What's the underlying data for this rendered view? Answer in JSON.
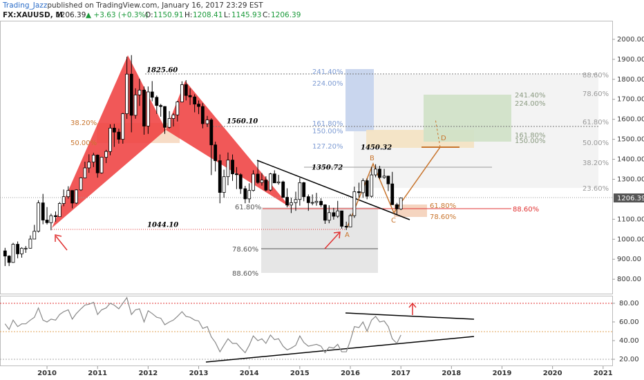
{
  "chart_data": {
    "type": "candlestick",
    "publisher": "Trading_Jazz",
    "published": " published on TradingView.com, January 16, 2017 23:29 EST",
    "symbol": "FX:XAUUSD, M",
    "change": "▲ +3.63 (+0.3%)",
    "ohlc_labels": [
      "O:",
      "H:",
      "L:",
      "C:"
    ],
    "up_color": "#ffffff",
    "down_color": "#000000",
    "grid": false,
    "xlim": [
      2009.07,
      2021.18
    ],
    "xticks": [
      2010,
      2011,
      2012,
      2013,
      2014,
      2015,
      2016,
      2017,
      2018,
      2019,
      2020,
      2021
    ],
    "ylim": [
      728,
      2093
    ],
    "yticks": [
      {
        "value": 800,
        "label": "800.00"
      },
      {
        "value": 900,
        "label": "900.00"
      },
      {
        "value": 1000,
        "label": "1000.00"
      },
      {
        "value": 1100,
        "label": "1100.00"
      },
      {
        "value": 1300,
        "label": "1300.00"
      },
      {
        "value": 1400,
        "label": "1400.00"
      },
      {
        "value": 1500,
        "label": "1500.00"
      },
      {
        "value": 1600,
        "label": "1600.00"
      },
      {
        "value": 1700,
        "label": "1700.00"
      },
      {
        "value": 1800,
        "label": "1800.00"
      },
      {
        "value": 1900,
        "label": "1900.00"
      },
      {
        "value": 2000,
        "label": "2000.00"
      }
    ],
    "x": [
      2009.17,
      2009.25,
      2009.33,
      2009.42,
      2009.5,
      2009.58,
      2009.67,
      2009.75,
      2009.83,
      2009.92,
      2010,
      2010.08,
      2010.17,
      2010.25,
      2010.33,
      2010.42,
      2010.5,
      2010.58,
      2010.67,
      2010.75,
      2010.83,
      2010.92,
      2011,
      2011.08,
      2011.17,
      2011.25,
      2011.33,
      2011.42,
      2011.5,
      2011.58,
      2011.67,
      2011.75,
      2011.83,
      2011.92,
      2012,
      2012.08,
      2012.17,
      2012.25,
      2012.33,
      2012.42,
      2012.5,
      2012.58,
      2012.67,
      2012.75,
      2012.83,
      2012.92,
      2013,
      2013.08,
      2013.17,
      2013.25,
      2013.33,
      2013.42,
      2013.5,
      2013.58,
      2013.67,
      2013.75,
      2013.83,
      2013.92,
      2014,
      2014.08,
      2014.17,
      2014.25,
      2014.33,
      2014.42,
      2014.5,
      2014.58,
      2014.67,
      2014.75,
      2014.83,
      2014.92,
      2015,
      2015.08,
      2015.17,
      2015.25,
      2015.33,
      2015.42,
      2015.5,
      2015.58,
      2015.67,
      2015.75,
      2015.83,
      2015.92,
      2016,
      2016.08,
      2016.17,
      2016.25,
      2016.33,
      2016.42,
      2016.5,
      2016.58,
      2016.67,
      2016.75,
      2016.83,
      2016.92,
      2017
    ],
    "candles": [
      [
        942,
        957,
        866,
        916
      ],
      [
        916,
        920,
        866,
        884
      ],
      [
        884,
        982,
        882,
        975
      ],
      [
        975,
        989,
        905,
        927
      ],
      [
        927,
        960,
        908,
        955
      ],
      [
        955,
        966,
        932,
        955
      ],
      [
        955,
        1019,
        953,
        1001
      ],
      [
        1001,
        1072,
        1001,
        1040
      ],
      [
        1040,
        1195,
        1034,
        1182
      ],
      [
        1182,
        1227,
        1075,
        1096
      ],
      [
        1096,
        1161,
        1074,
        1083
      ],
      [
        1083,
        1128,
        1045,
        1118
      ],
      [
        1118,
        1139,
        1088,
        1113
      ],
      [
        1113,
        1186,
        1112,
        1179
      ],
      [
        1179,
        1249,
        1165,
        1213
      ],
      [
        1213,
        1265,
        1203,
        1244
      ],
      [
        1244,
        1245,
        1155,
        1181
      ],
      [
        1181,
        1250,
        1176,
        1247
      ],
      [
        1247,
        1310,
        1242,
        1307
      ],
      [
        1307,
        1388,
        1305,
        1357
      ],
      [
        1357,
        1425,
        1332,
        1386
      ],
      [
        1386,
        1432,
        1361,
        1421
      ],
      [
        1421,
        1424,
        1308,
        1332
      ],
      [
        1332,
        1411,
        1328,
        1410
      ],
      [
        1410,
        1447,
        1381,
        1439
      ],
      [
        1439,
        1575,
        1420,
        1556
      ],
      [
        1556,
        1577,
        1462,
        1536
      ],
      [
        1536,
        1553,
        1478,
        1500
      ],
      [
        1500,
        1632,
        1478,
        1628
      ],
      [
        1628,
        1913,
        1602,
        1826
      ],
      [
        1826,
        1921,
        1535,
        1620
      ],
      [
        1620,
        1755,
        1603,
        1722
      ],
      [
        1722,
        1803,
        1667,
        1746
      ],
      [
        1746,
        1764,
        1523,
        1566
      ],
      [
        1566,
        1764,
        1527,
        1737
      ],
      [
        1737,
        1791,
        1690,
        1710
      ],
      [
        1710,
        1719,
        1627,
        1669
      ],
      [
        1669,
        1677,
        1613,
        1664
      ],
      [
        1664,
        1666,
        1527,
        1560
      ],
      [
        1560,
        1641,
        1554,
        1604
      ],
      [
        1604,
        1630,
        1564,
        1622
      ],
      [
        1622,
        1692,
        1589,
        1687
      ],
      [
        1687,
        1790,
        1685,
        1773
      ],
      [
        1773,
        1796,
        1694,
        1719
      ],
      [
        1719,
        1755,
        1672,
        1712
      ],
      [
        1712,
        1725,
        1635,
        1676
      ],
      [
        1676,
        1694,
        1626,
        1664
      ],
      [
        1664,
        1681,
        1555,
        1578
      ],
      [
        1578,
        1617,
        1562,
        1597
      ],
      [
        1597,
        1605,
        1321,
        1472
      ],
      [
        1472,
        1488,
        1339,
        1393
      ],
      [
        1393,
        1424,
        1180,
        1234
      ],
      [
        1234,
        1348,
        1208,
        1313
      ],
      [
        1313,
        1434,
        1270,
        1396
      ],
      [
        1396,
        1424,
        1292,
        1327
      ],
      [
        1327,
        1361,
        1251,
        1323
      ],
      [
        1323,
        1330,
        1227,
        1253
      ],
      [
        1253,
        1267,
        1180,
        1202
      ],
      [
        1202,
        1280,
        1182,
        1244
      ],
      [
        1244,
        1345,
        1239,
        1326
      ],
      [
        1326,
        1392,
        1277,
        1284
      ],
      [
        1284,
        1331,
        1268,
        1296
      ],
      [
        1296,
        1315,
        1240,
        1246
      ],
      [
        1246,
        1332,
        1240,
        1327
      ],
      [
        1327,
        1345,
        1281,
        1282
      ],
      [
        1282,
        1322,
        1273,
        1287
      ],
      [
        1287,
        1293,
        1206,
        1210
      ],
      [
        1210,
        1255,
        1160,
        1171
      ],
      [
        1171,
        1208,
        1131,
        1183
      ],
      [
        1183,
        1238,
        1142,
        1199
      ],
      [
        1199,
        1307,
        1168,
        1283
      ],
      [
        1283,
        1287,
        1190,
        1213
      ],
      [
        1213,
        1224,
        1142,
        1183
      ],
      [
        1183,
        1224,
        1170,
        1184
      ],
      [
        1184,
        1232,
        1168,
        1190
      ],
      [
        1190,
        1205,
        1162,
        1172
      ],
      [
        1172,
        1175,
        1077,
        1095
      ],
      [
        1095,
        1170,
        1080,
        1133
      ],
      [
        1133,
        1157,
        1098,
        1115
      ],
      [
        1115,
        1192,
        1107,
        1142
      ],
      [
        1142,
        1143,
        1053,
        1065
      ],
      [
        1065,
        1088,
        1046,
        1061
      ],
      [
        1061,
        1127,
        1061,
        1118
      ],
      [
        1118,
        1263,
        1107,
        1238
      ],
      [
        1238,
        1283,
        1208,
        1233
      ],
      [
        1233,
        1304,
        1207,
        1293
      ],
      [
        1293,
        1304,
        1200,
        1215
      ],
      [
        1215,
        1362,
        1208,
        1322
      ],
      [
        1322,
        1375,
        1310,
        1351
      ],
      [
        1351,
        1367,
        1301,
        1309
      ],
      [
        1309,
        1352,
        1302,
        1316
      ],
      [
        1316,
        1318,
        1241,
        1277
      ],
      [
        1277,
        1337,
        1171,
        1173
      ],
      [
        1173,
        1182,
        1122,
        1152
      ],
      [
        1150.91,
        1208.41,
        1145.93,
        1206.39
      ]
    ],
    "rsi": {
      "color": "#888888",
      "ylim": [
        12.6,
        88.1
      ],
      "yticks": [
        {
          "value": 20,
          "label": "20.00"
        },
        {
          "value": 40,
          "label": "40.00"
        },
        {
          "value": 60,
          "label": "60.00"
        },
        {
          "value": 80,
          "label": "80.00"
        }
      ],
      "values": [
        58,
        52,
        62,
        55,
        58,
        58,
        62,
        65,
        75,
        62,
        60,
        63,
        62,
        68,
        71,
        73,
        63,
        69,
        74,
        78,
        79,
        81,
        68,
        73,
        75,
        80,
        78,
        74,
        80,
        86,
        68,
        73,
        74,
        60,
        72,
        69,
        65,
        64,
        57,
        60,
        62,
        66,
        71,
        66,
        65,
        62,
        61,
        53,
        55,
        44,
        38,
        28,
        35,
        42,
        37,
        37,
        32,
        27,
        35,
        45,
        40,
        42,
        37,
        46,
        41,
        42,
        34,
        30,
        32,
        35,
        45,
        38,
        34,
        35,
        36,
        34,
        27,
        33,
        32,
        36,
        28,
        28,
        40,
        55,
        54,
        60,
        50,
        62,
        66,
        60,
        61,
        55,
        42,
        37,
        46
      ]
    },
    "annotations": [
      {
        "text": "1825.60",
        "color": "#000000",
        "weight": "bold"
      },
      {
        "text": "1560.10",
        "color": "#000000",
        "weight": "bold"
      },
      {
        "text": "1044.10",
        "color": "#000000",
        "weight": "bold"
      },
      {
        "text": "1350.72",
        "color": "#000000",
        "weight": "bold"
      },
      {
        "text": "1450.32",
        "color": "#000000",
        "weight": "bold"
      },
      {
        "text": "38.20%",
        "color": "#c8742c"
      },
      {
        "text": "50.00%",
        "color": "#c8742c"
      },
      {
        "text": "61.80%",
        "color": "#555555"
      },
      {
        "text": "78.60%",
        "color": "#555555"
      },
      {
        "text": "88.60%",
        "color": "#555555"
      },
      {
        "text": "241.40%",
        "color": "#7d9bd3"
      },
      {
        "text": "224.00%",
        "color": "#7d9bd3"
      },
      {
        "text": "161.80%",
        "color": "#7d9bd3"
      },
      {
        "text": "150.00%",
        "color": "#7d9bd3"
      },
      {
        "text": "127.20%",
        "color": "#7d9bd3"
      },
      {
        "text": "88.60%",
        "color": "#999999"
      },
      {
        "text": "78.60%",
        "color": "#999999"
      },
      {
        "text": "61.80%",
        "color": "#999999"
      },
      {
        "text": "50.00%",
        "color": "#999999"
      },
      {
        "text": "38.20%",
        "color": "#999999"
      },
      {
        "text": "23.60%",
        "color": "#999999"
      },
      {
        "text": "241.40%",
        "color": "#8a9a80"
      },
      {
        "text": "224.00%",
        "color": "#8a9a80"
      },
      {
        "text": "161.80%",
        "color": "#8a9a80"
      },
      {
        "text": "150.00%",
        "color": "#8a9a80"
      },
      {
        "text": "61.80%",
        "color": "#c8742c"
      },
      {
        "text": "78.60%",
        "color": "#c8742c"
      },
      {
        "text": "88.60%",
        "color": "#e03030"
      },
      {
        "text": "A",
        "color": "#c8742c"
      },
      {
        "text": "B",
        "color": "#c8742c"
      },
      {
        "text": "C",
        "color": "#c8742c"
      },
      {
        "text": "D",
        "color": "#c8742c"
      }
    ]
  }
}
